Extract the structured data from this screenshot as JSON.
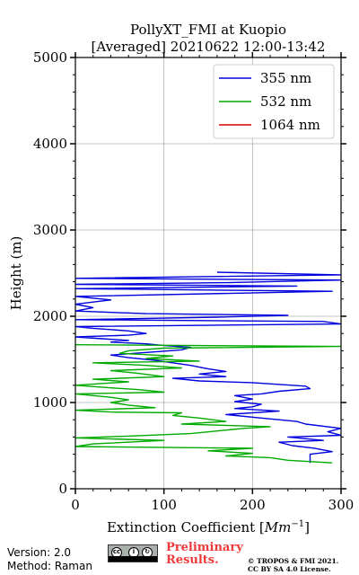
{
  "chart_data": {
    "type": "line",
    "title_line1": "PollyXT_FMI at Kuopio",
    "title_line2": "[Averaged] 20210622 12:00-13:42",
    "xlabel_prefix": "Extinction Coefficient [",
    "xlabel_unit": "Mm",
    "xlabel_exp": "−1",
    "xlabel_suffix": "]",
    "ylabel": "Height (m)",
    "xlim": [
      0,
      300
    ],
    "ylim": [
      0,
      5000
    ],
    "xticks": [
      0,
      100,
      200,
      300
    ],
    "yticks": [
      0,
      1000,
      2000,
      3000,
      4000,
      5000
    ],
    "grid": true,
    "legend_position": "top-right",
    "series": [
      {
        "name": "355 nm",
        "color": "#0000dd",
        "points": [
          [
            265,
            300
          ],
          [
            265,
            400
          ],
          [
            290,
            430
          ],
          [
            270,
            470
          ],
          [
            245,
            500
          ],
          [
            230,
            540
          ],
          [
            280,
            560
          ],
          [
            240,
            600
          ],
          [
            300,
            620
          ],
          [
            285,
            660
          ],
          [
            300,
            700
          ],
          [
            260,
            750
          ],
          [
            250,
            780
          ],
          [
            210,
            820
          ],
          [
            170,
            860
          ],
          [
            230,
            900
          ],
          [
            180,
            930
          ],
          [
            200,
            950
          ],
          [
            210,
            980
          ],
          [
            180,
            1010
          ],
          [
            200,
            1040
          ],
          [
            180,
            1080
          ],
          [
            210,
            1100
          ],
          [
            230,
            1130
          ],
          [
            265,
            1160
          ],
          [
            260,
            1190
          ],
          [
            200,
            1230
          ],
          [
            140,
            1250
          ],
          [
            110,
            1280
          ],
          [
            170,
            1300
          ],
          [
            140,
            1330
          ],
          [
            170,
            1360
          ],
          [
            150,
            1390
          ],
          [
            130,
            1430
          ],
          [
            110,
            1460
          ],
          [
            90,
            1490
          ],
          [
            60,
            1520
          ],
          [
            40,
            1550
          ],
          [
            80,
            1580
          ],
          [
            120,
            1610
          ],
          [
            130,
            1640
          ],
          [
            100,
            1660
          ],
          [
            80,
            1680
          ],
          [
            40,
            1700
          ],
          [
            60,
            1720
          ],
          [
            30,
            1740
          ],
          [
            0,
            1760
          ],
          [
            60,
            1780
          ],
          [
            80,
            1800
          ],
          [
            60,
            1830
          ],
          [
            20,
            1860
          ],
          [
            0,
            1880
          ],
          [
            300,
            1910
          ],
          [
            280,
            1940
          ],
          [
            0,
            1960
          ],
          [
            160,
            1990
          ],
          [
            240,
            2010
          ],
          [
            80,
            2030
          ],
          [
            0,
            2060
          ],
          [
            20,
            2100
          ],
          [
            0,
            2140
          ],
          [
            40,
            2190
          ],
          [
            0,
            2230
          ],
          [
            290,
            2290
          ],
          [
            0,
            2320
          ],
          [
            250,
            2350
          ],
          [
            0,
            2370
          ],
          [
            170,
            2390
          ],
          [
            300,
            2420
          ],
          [
            0,
            2440
          ],
          [
            300,
            2480
          ],
          [
            160,
            2510
          ]
        ]
      },
      {
        "name": "532 nm",
        "color": "#00aa00",
        "points": [
          [
            290,
            300
          ],
          [
            240,
            330
          ],
          [
            220,
            360
          ],
          [
            170,
            380
          ],
          [
            200,
            410
          ],
          [
            150,
            440
          ],
          [
            200,
            470
          ],
          [
            0,
            490
          ],
          [
            20,
            520
          ],
          [
            100,
            560
          ],
          [
            0,
            590
          ],
          [
            60,
            610
          ],
          [
            130,
            640
          ],
          [
            160,
            670
          ],
          [
            190,
            700
          ],
          [
            220,
            720
          ],
          [
            120,
            750
          ],
          [
            170,
            780
          ],
          [
            140,
            820
          ],
          [
            110,
            850
          ],
          [
            120,
            880
          ],
          [
            40,
            890
          ],
          [
            0,
            910
          ],
          [
            90,
            940
          ],
          [
            60,
            970
          ],
          [
            40,
            1000
          ],
          [
            60,
            1030
          ],
          [
            40,
            1060
          ],
          [
            0,
            1100
          ],
          [
            100,
            1120
          ],
          [
            70,
            1150
          ],
          [
            40,
            1170
          ],
          [
            0,
            1200
          ],
          [
            60,
            1240
          ],
          [
            20,
            1270
          ],
          [
            100,
            1300
          ],
          [
            70,
            1340
          ],
          [
            40,
            1370
          ],
          [
            120,
            1400
          ],
          [
            80,
            1430
          ],
          [
            20,
            1460
          ],
          [
            140,
            1480
          ],
          [
            80,
            1510
          ],
          [
            110,
            1540
          ],
          [
            50,
            1570
          ],
          [
            60,
            1600
          ],
          [
            100,
            1630
          ],
          [
            300,
            1650
          ],
          [
            0,
            1670
          ]
        ]
      },
      {
        "name": "1064 nm",
        "color": "#dd0000",
        "points": []
      }
    ]
  },
  "footer": {
    "version": "Version: 2.0",
    "method": "Method: Raman",
    "preliminary_line1": "Preliminary",
    "preliminary_line2": "Results.",
    "copyright_line1": "© TROPOS & FMI 2021.",
    "copyright_line2": "CC BY SA 4.0 License.",
    "badge_text": "cc by sa"
  }
}
